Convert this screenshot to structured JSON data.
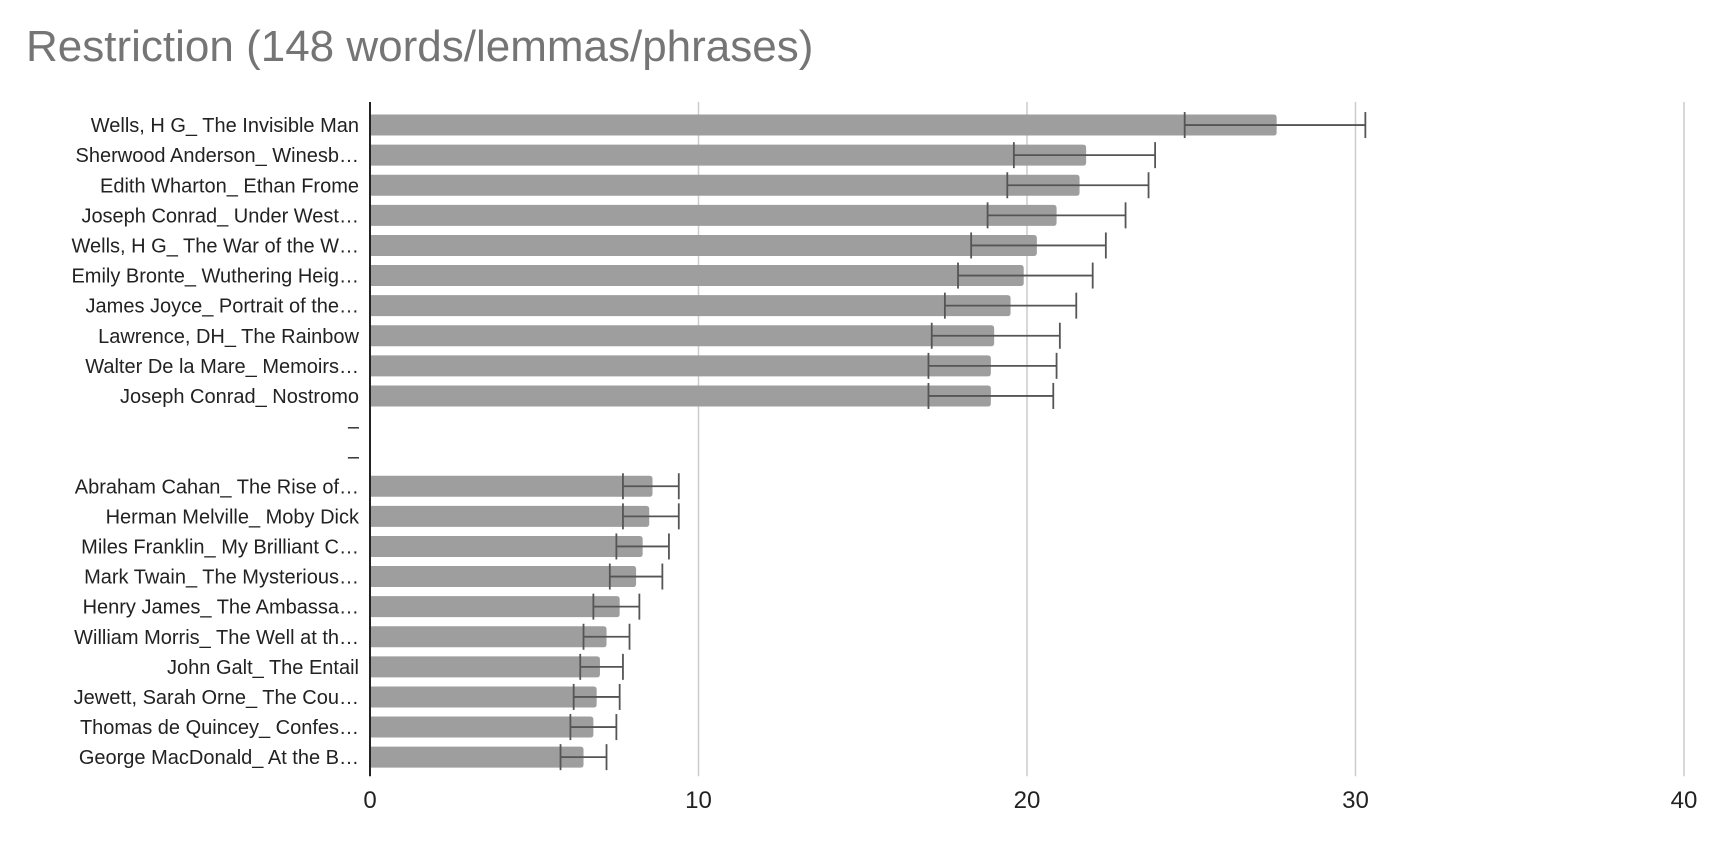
{
  "chart_data": {
    "type": "bar",
    "orientation": "horizontal",
    "title": "Restriction (148 words/lemmas/phrases)",
    "xlabel": "",
    "ylabel": "",
    "xlim": [
      0,
      40
    ],
    "xticks": [
      0,
      10,
      20,
      30,
      40
    ],
    "grid": true,
    "legend": "none",
    "bar_color": "#9e9e9e",
    "error_bar_color": "#555555",
    "grid_color": "#cccccc",
    "categories": [
      "Wells, H G_ The Invisible Man",
      "Sherwood Anderson_ Winesb…",
      "Edith Wharton_ Ethan Frome",
      "Joseph Conrad_ Under West…",
      "Wells, H G_ The War of the W…",
      "Emily Bronte_ Wuthering Heig…",
      "James Joyce_ Portrait of the…",
      "Lawrence, DH_ The Rainbow",
      "Walter De la Mare_ Memoirs…",
      "Joseph Conrad_ Nostromo",
      "–",
      "–",
      "Abraham Cahan_ The Rise of…",
      "Herman Melville_ Moby Dick",
      "Miles Franklin_ My Brilliant C…",
      "Mark Twain_ The Mysterious…",
      "Henry James_ The Ambassa…",
      "William Morris_ The Well at th…",
      "John Galt_ The Entail",
      "Jewett, Sarah Orne_ The Cou…",
      "Thomas de Quincey_ Confes…",
      "George MacDonald_ At the B…"
    ],
    "values": [
      27.6,
      21.8,
      21.6,
      20.9,
      20.3,
      19.9,
      19.5,
      19.0,
      18.9,
      18.9,
      null,
      null,
      8.6,
      8.5,
      8.3,
      8.1,
      7.6,
      7.2,
      7.0,
      6.9,
      6.8,
      6.5
    ],
    "error_low": [
      24.8,
      19.6,
      19.4,
      18.8,
      18.3,
      17.9,
      17.5,
      17.1,
      17.0,
      17.0,
      null,
      null,
      7.7,
      7.7,
      7.5,
      7.3,
      6.8,
      6.5,
      6.4,
      6.2,
      6.1,
      5.8
    ],
    "error_high": [
      30.3,
      23.9,
      23.7,
      23.0,
      22.4,
      22.0,
      21.5,
      21.0,
      20.9,
      20.8,
      null,
      null,
      9.4,
      9.4,
      9.1,
      8.9,
      8.2,
      7.9,
      7.7,
      7.6,
      7.5,
      7.2
    ]
  }
}
